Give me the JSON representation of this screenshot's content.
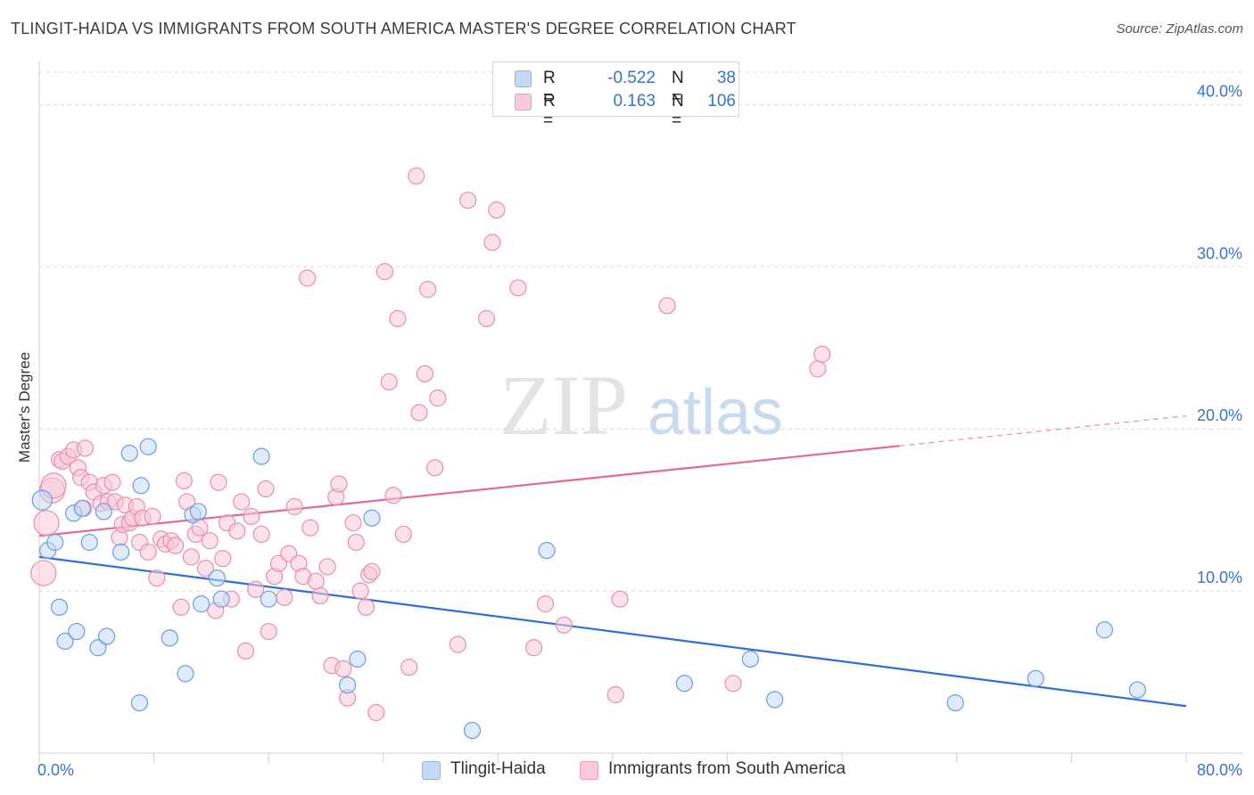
{
  "title": "TLINGIT-HAIDA VS IMMIGRANTS FROM SOUTH AMERICA MASTER'S DEGREE CORRELATION CHART",
  "source": "Source: ZipAtlas.com",
  "watermark": {
    "zip": "ZIP",
    "atlas": "atlas"
  },
  "legend": {
    "r_label": "R =",
    "n_label": "N =",
    "rows": [
      {
        "r": "-0.522",
        "n": "38"
      },
      {
        "r": "0.163",
        "n": "106"
      }
    ]
  },
  "chart_data": {
    "type": "scatter",
    "xlabel": "",
    "ylabel": "Master's Degree",
    "xlim": [
      0,
      80
    ],
    "ylim": [
      0,
      42
    ],
    "x_tick_labels": [
      {
        "value": 0,
        "label": "0.0%"
      },
      {
        "value": 80,
        "label": "80.0%"
      }
    ],
    "y_ticks": [
      {
        "value": 10,
        "label": "10.0%"
      },
      {
        "value": 20,
        "label": "20.0%"
      },
      {
        "value": 30,
        "label": "30.0%"
      },
      {
        "value": 40,
        "label": "40.0%"
      }
    ],
    "x_minor_ticks": [
      0,
      8,
      16,
      24,
      32,
      40,
      48,
      56,
      64,
      72,
      80
    ],
    "grid": "horizontal-dashed",
    "series": [
      {
        "name": "Tlingit-Haida",
        "color": "#6a9ee0",
        "fill": "#c5d8f5",
        "trend": {
          "x0": 0,
          "y0": 12.1,
          "x1": 80,
          "y1": 2.9,
          "solid_to": 80
        },
        "points": [
          [
            0.2,
            15.6
          ],
          [
            0.6,
            12.5
          ],
          [
            1.1,
            13.0
          ],
          [
            1.4,
            9.0
          ],
          [
            1.8,
            6.9
          ],
          [
            2.4,
            14.8
          ],
          [
            2.6,
            7.5
          ],
          [
            3.0,
            15.1
          ],
          [
            3.5,
            13.0
          ],
          [
            4.1,
            6.5
          ],
          [
            4.5,
            14.9
          ],
          [
            4.7,
            7.2
          ],
          [
            5.7,
            12.4
          ],
          [
            6.3,
            18.5
          ],
          [
            7.0,
            3.1
          ],
          [
            7.1,
            16.5
          ],
          [
            7.6,
            18.9
          ],
          [
            9.1,
            7.1
          ],
          [
            10.2,
            4.9
          ],
          [
            10.7,
            14.7
          ],
          [
            11.1,
            14.9
          ],
          [
            11.3,
            9.2
          ],
          [
            12.4,
            10.8
          ],
          [
            12.7,
            9.5
          ],
          [
            15.5,
            18.3
          ],
          [
            16.0,
            9.5
          ],
          [
            21.5,
            4.2
          ],
          [
            22.2,
            5.8
          ],
          [
            23.2,
            14.5
          ],
          [
            30.2,
            1.4
          ],
          [
            35.4,
            12.5
          ],
          [
            45.0,
            4.3
          ],
          [
            49.6,
            5.8
          ],
          [
            51.3,
            3.3
          ],
          [
            63.9,
            3.1
          ],
          [
            69.5,
            4.6
          ],
          [
            74.3,
            7.6
          ],
          [
            76.6,
            3.9
          ]
        ]
      },
      {
        "name": "Immigrants from South America",
        "color": "#e88fae",
        "fill": "#f8c9d8",
        "trend": {
          "x0": 0,
          "y0": 13.4,
          "x1": 80,
          "y1": 20.8,
          "solid_to": 60
        },
        "points": [
          [
            0.3,
            11.1
          ],
          [
            0.5,
            14.2
          ],
          [
            0.9,
            16.2
          ],
          [
            1.0,
            16.5
          ],
          [
            1.4,
            18.1
          ],
          [
            1.6,
            18.0
          ],
          [
            2.0,
            18.3
          ],
          [
            2.4,
            18.7
          ],
          [
            2.7,
            17.6
          ],
          [
            2.9,
            17.0
          ],
          [
            3.1,
            15.1
          ],
          [
            3.2,
            18.8
          ],
          [
            3.5,
            16.7
          ],
          [
            3.8,
            16.1
          ],
          [
            4.3,
            15.4
          ],
          [
            4.5,
            16.5
          ],
          [
            4.8,
            15.5
          ],
          [
            5.1,
            16.7
          ],
          [
            5.3,
            15.5
          ],
          [
            5.6,
            13.3
          ],
          [
            5.8,
            14.1
          ],
          [
            6.0,
            15.3
          ],
          [
            6.3,
            14.2
          ],
          [
            6.5,
            14.5
          ],
          [
            6.8,
            15.2
          ],
          [
            7.0,
            13.0
          ],
          [
            7.2,
            14.5
          ],
          [
            7.6,
            12.4
          ],
          [
            7.9,
            14.6
          ],
          [
            8.2,
            10.8
          ],
          [
            8.5,
            13.2
          ],
          [
            8.8,
            12.9
          ],
          [
            9.2,
            13.1
          ],
          [
            9.5,
            12.8
          ],
          [
            9.9,
            9.0
          ],
          [
            10.1,
            16.8
          ],
          [
            10.3,
            15.5
          ],
          [
            10.6,
            12.1
          ],
          [
            10.9,
            13.5
          ],
          [
            11.2,
            13.9
          ],
          [
            11.6,
            11.4
          ],
          [
            11.9,
            13.1
          ],
          [
            12.3,
            8.8
          ],
          [
            12.5,
            16.7
          ],
          [
            12.8,
            12.0
          ],
          [
            13.1,
            14.2
          ],
          [
            13.4,
            9.5
          ],
          [
            13.8,
            13.7
          ],
          [
            14.1,
            15.5
          ],
          [
            14.4,
            6.3
          ],
          [
            14.8,
            14.6
          ],
          [
            15.1,
            10.1
          ],
          [
            15.5,
            13.5
          ],
          [
            15.8,
            16.3
          ],
          [
            16.0,
            7.5
          ],
          [
            16.4,
            10.9
          ],
          [
            16.7,
            11.7
          ],
          [
            17.1,
            9.6
          ],
          [
            17.4,
            12.3
          ],
          [
            17.8,
            15.2
          ],
          [
            18.1,
            11.7
          ],
          [
            18.4,
            10.9
          ],
          [
            18.7,
            29.3
          ],
          [
            18.9,
            13.9
          ],
          [
            19.3,
            10.6
          ],
          [
            19.6,
            9.7
          ],
          [
            20.1,
            11.5
          ],
          [
            20.4,
            5.4
          ],
          [
            20.7,
            15.8
          ],
          [
            20.9,
            16.6
          ],
          [
            21.2,
            5.2
          ],
          [
            21.5,
            3.4
          ],
          [
            21.9,
            14.2
          ],
          [
            22.1,
            13.0
          ],
          [
            22.4,
            10.0
          ],
          [
            22.8,
            9.0
          ],
          [
            23.0,
            11.0
          ],
          [
            23.2,
            11.2
          ],
          [
            23.5,
            2.5
          ],
          [
            24.1,
            29.7
          ],
          [
            24.4,
            22.9
          ],
          [
            24.7,
            15.9
          ],
          [
            25.0,
            26.8
          ],
          [
            25.4,
            13.5
          ],
          [
            25.8,
            5.3
          ],
          [
            26.3,
            35.6
          ],
          [
            26.5,
            21.0
          ],
          [
            26.9,
            23.4
          ],
          [
            27.1,
            28.6
          ],
          [
            27.6,
            17.6
          ],
          [
            27.8,
            21.9
          ],
          [
            29.2,
            6.7
          ],
          [
            29.9,
            34.1
          ],
          [
            31.2,
            26.8
          ],
          [
            31.6,
            31.5
          ],
          [
            31.9,
            33.5
          ],
          [
            33.4,
            28.7
          ],
          [
            34.5,
            6.5
          ],
          [
            35.3,
            9.2
          ],
          [
            36.6,
            7.9
          ],
          [
            40.2,
            3.6
          ],
          [
            40.5,
            9.5
          ],
          [
            43.8,
            27.6
          ],
          [
            48.4,
            4.3
          ],
          [
            54.3,
            23.7
          ],
          [
            54.6,
            24.6
          ]
        ]
      }
    ]
  }
}
